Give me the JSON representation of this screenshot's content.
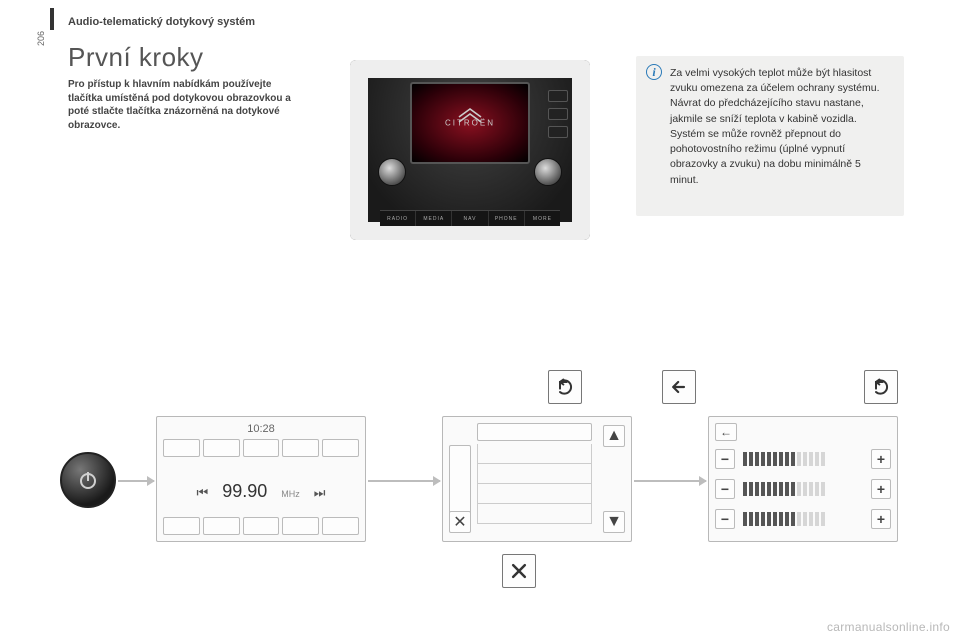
{
  "header": {
    "section": "Audio-telematický dotykový systém",
    "page_number": "206"
  },
  "title": "První kroky",
  "intro": "Pro přístup k hlavním nabídkám používejte tlačítka umístěná pod dotykovou obrazovkou a poté stlačte tlačítka znázorněná na dotykové obrazovce.",
  "info": {
    "text": "Za velmi vysokých teplot může být hlasitost zvuku omezena za účelem ochrany systému. Návrat do předcházejícího stavu nastane, jakmile se sníží teplota v kabině vozidla. Systém se může rovněž přepnout do pohotovostního režimu (úplné vypnutí obrazovky a zvuku) na dobu minimálně 5 minut."
  },
  "dash": {
    "brand": "CITROËN",
    "tabs": [
      "RADIO",
      "MEDIA",
      "NAV",
      "PHONE",
      "MORE"
    ]
  },
  "radio": {
    "clock": "10:28",
    "frequency": "99.90",
    "unit": "MHz"
  },
  "sliders": {
    "rows": [
      {
        "filled": 9,
        "total": 14
      },
      {
        "filled": 9,
        "total": 14
      },
      {
        "filled": 9,
        "total": 14
      }
    ]
  },
  "watermark": "carmanualsonline.info",
  "colors": {
    "accent": "#2a7ab8",
    "panel_border": "#b8b8b8",
    "tick_on": "#555",
    "tick_off": "#d6d6d6"
  }
}
